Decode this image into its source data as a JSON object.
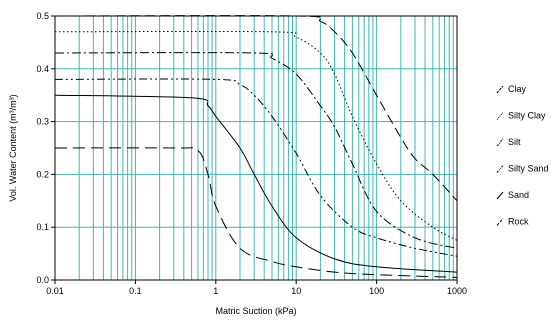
{
  "chart_data": {
    "type": "line",
    "title": "",
    "xlabel": "Matric Suction (kPa)",
    "ylabel": "Vol. Water Content (m³/m³)",
    "x_scale": "log",
    "xlim": [
      0.01,
      1000
    ],
    "ylim": [
      0,
      0.5
    ],
    "x_tick_labels": [
      "0.01",
      "0.1",
      "1",
      "10",
      "100",
      "1000"
    ],
    "x_ticks": [
      0.01,
      0.1,
      1,
      10,
      100,
      1000
    ],
    "y_tick_labels": [
      "0.0",
      "0.1",
      "0.2",
      "0.3",
      "0.4",
      "0.5"
    ],
    "y_ticks": [
      0,
      0.1,
      0.2,
      0.3,
      0.4,
      0.5
    ],
    "grid": true,
    "grid_color": "#3fb8b3",
    "legend_position": "right",
    "series": [
      {
        "name": "Clay",
        "dash": "10,5",
        "x": [
          0.01,
          10,
          20,
          30,
          50,
          100,
          200,
          300,
          500,
          1000
        ],
        "y": [
          0.5,
          0.5,
          0.49,
          0.47,
          0.43,
          0.35,
          0.27,
          0.23,
          0.2,
          0.15
        ]
      },
      {
        "name": "Silty Clay",
        "dash": "1.5,2.5",
        "x": [
          0.01,
          5,
          10,
          20,
          30,
          50,
          100,
          200,
          500,
          1000
        ],
        "y": [
          0.47,
          0.47,
          0.46,
          0.43,
          0.39,
          0.31,
          0.22,
          0.15,
          0.1,
          0.075
        ]
      },
      {
        "name": "Silt",
        "dash": "9,3,2,3",
        "x": [
          0.01,
          3,
          5,
          10,
          20,
          30,
          50,
          100,
          300,
          1000
        ],
        "y": [
          0.43,
          0.43,
          0.42,
          0.39,
          0.33,
          0.29,
          0.22,
          0.13,
          0.08,
          0.06
        ]
      },
      {
        "name": "Silty Sand",
        "dash": "8,3,2,3,2,3",
        "x": [
          0.01,
          1,
          2,
          3,
          5,
          10,
          20,
          50,
          100,
          300,
          1000
        ],
        "y": [
          0.38,
          0.38,
          0.37,
          0.35,
          0.31,
          0.24,
          0.16,
          0.1,
          0.08,
          0.06,
          0.045
        ]
      },
      {
        "name": "Sand",
        "dash": "",
        "x": [
          0.01,
          0.5,
          0.8,
          1,
          2,
          3,
          5,
          10,
          30,
          100,
          1000
        ],
        "y": [
          0.35,
          0.345,
          0.33,
          0.31,
          0.25,
          0.2,
          0.14,
          0.08,
          0.04,
          0.025,
          0.015
        ]
      },
      {
        "name": "Rock",
        "dash": "12,6",
        "x": [
          0.01,
          0.3,
          0.6,
          0.8,
          1,
          2,
          5,
          10,
          30,
          100,
          1000
        ],
        "y": [
          0.25,
          0.25,
          0.245,
          0.2,
          0.14,
          0.06,
          0.035,
          0.025,
          0.015,
          0.01,
          0.005
        ]
      }
    ]
  }
}
